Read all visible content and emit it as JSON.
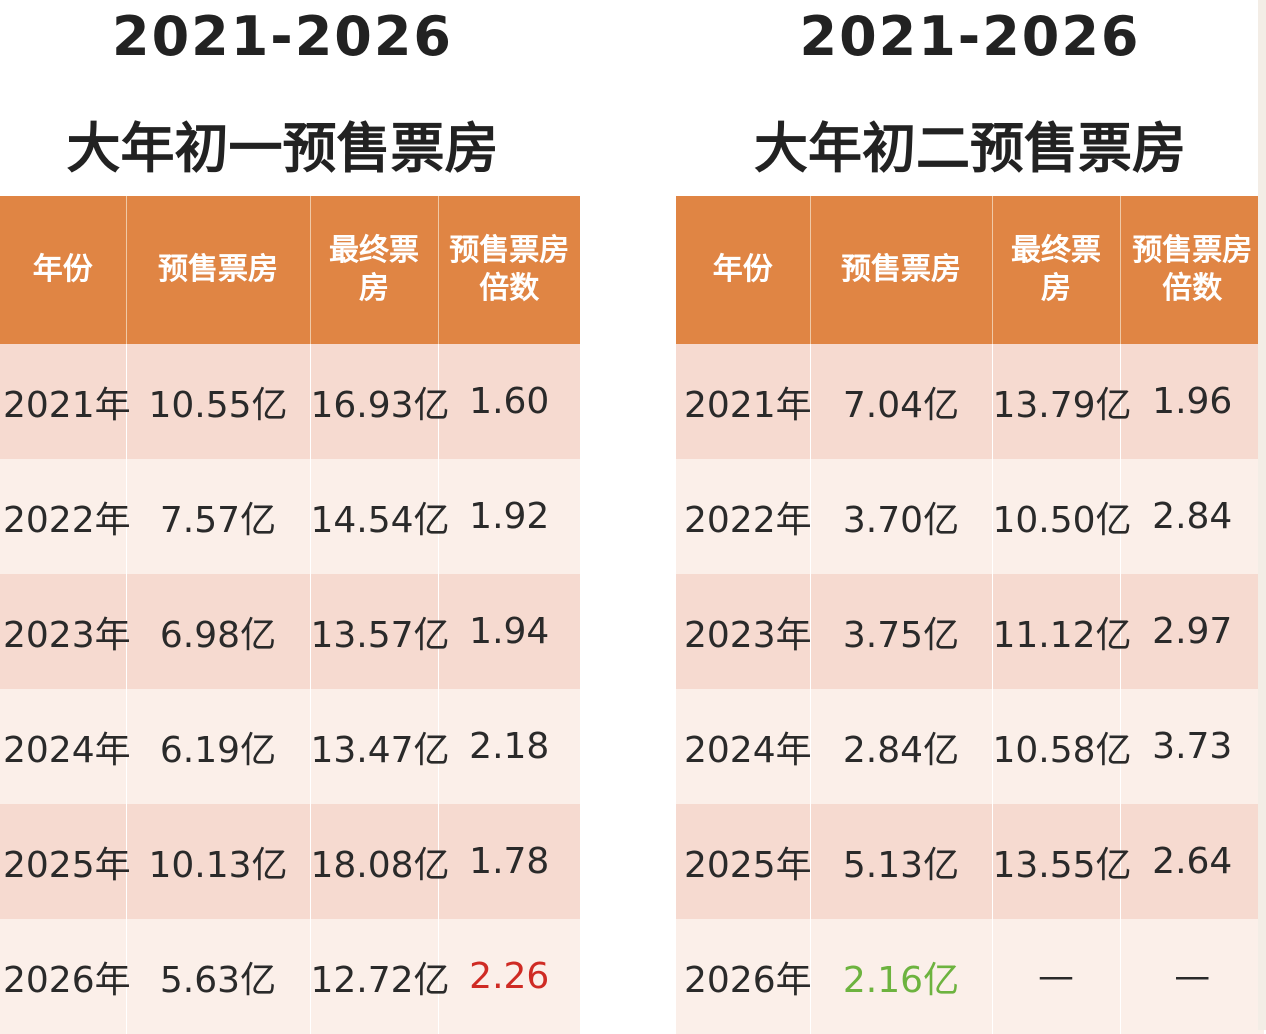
{
  "chart_data": [
    {
      "type": "table",
      "title_years": "2021-2026",
      "title": "大年初一预售票房",
      "columns": [
        "年份",
        "预售票房",
        "最终票房",
        "预售票房倍数"
      ],
      "rows": [
        [
          "2021年",
          "10.55亿",
          "16.93亿",
          "1.60"
        ],
        [
          "2022年",
          "7.57亿",
          "14.54亿",
          "1.92"
        ],
        [
          "2023年",
          "6.98亿",
          "13.57亿",
          "1.94"
        ],
        [
          "2024年",
          "6.19亿",
          "13.47亿",
          "2.18"
        ],
        [
          "2025年",
          "10.13亿",
          "18.08亿",
          "1.78"
        ],
        [
          "2026年",
          "5.63亿",
          "12.72亿",
          "2.26"
        ]
      ],
      "highlight": {
        "row": 5,
        "col": 3,
        "color": "#cf2b24"
      }
    },
    {
      "type": "table",
      "title_years": "2021-2026",
      "title": "大年初二预售票房",
      "columns": [
        "年份",
        "预售票房",
        "最终票房",
        "预售票房倍数"
      ],
      "rows": [
        [
          "2021年",
          "7.04亿",
          "13.79亿",
          "1.96"
        ],
        [
          "2022年",
          "3.70亿",
          "10.50亿",
          "2.84"
        ],
        [
          "2023年",
          "3.75亿",
          "11.12亿",
          "2.97"
        ],
        [
          "2024年",
          "2.84亿",
          "10.58亿",
          "3.73"
        ],
        [
          "2025年",
          "5.13亿",
          "13.55亿",
          "2.64"
        ],
        [
          "2026年",
          "2.16亿",
          "—",
          "—"
        ]
      ],
      "highlight": {
        "row": 5,
        "col": 1,
        "color": "#6db33f"
      }
    }
  ],
  "colors": {
    "header_bg": "#e08544",
    "row_odd": "#f6dad0",
    "row_even": "#fbefe9"
  }
}
